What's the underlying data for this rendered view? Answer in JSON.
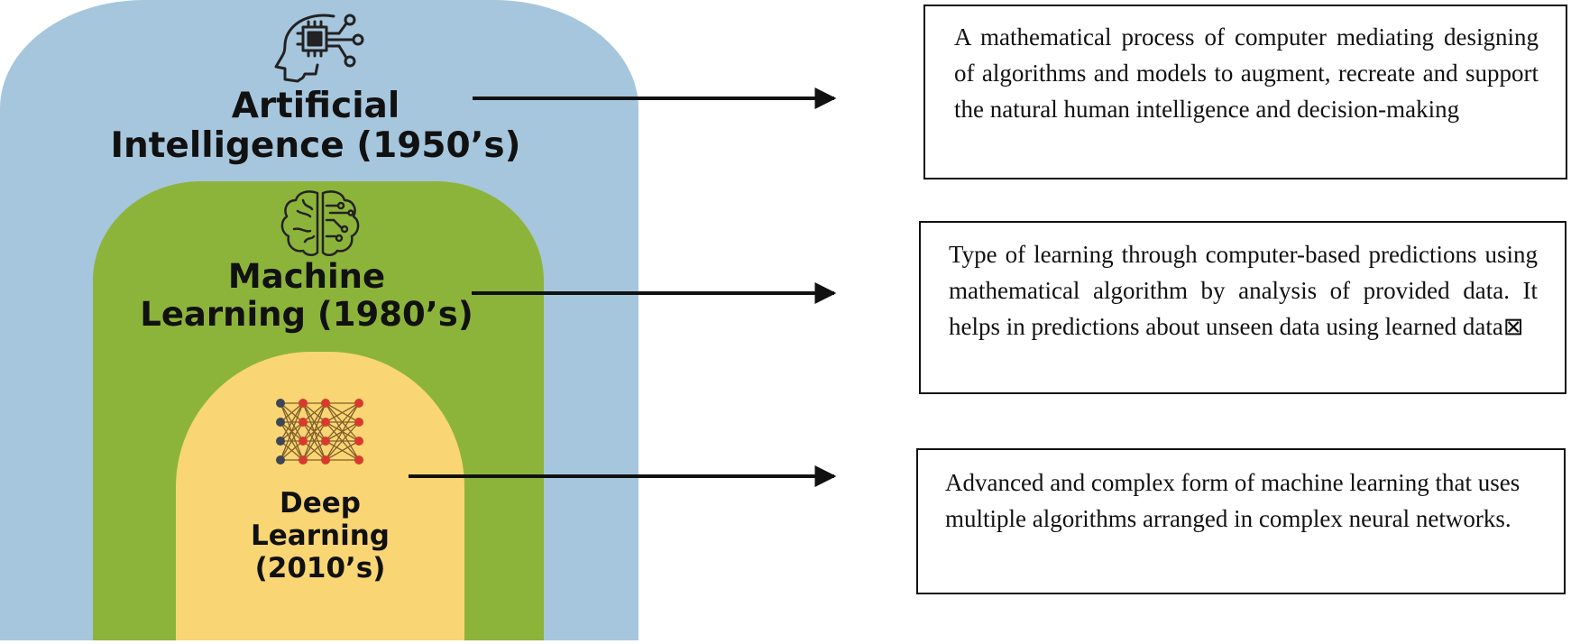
{
  "layers": [
    {
      "id": "ai",
      "title": "Artificial\nIntelligence (1950’s)",
      "icon": "ai-head-chip-icon",
      "color": "#a6c6dd"
    },
    {
      "id": "ml",
      "title": "Machine\nLearning (1980’s)",
      "icon": "brain-circuit-icon",
      "color": "#8db43a"
    },
    {
      "id": "dl",
      "title": "Deep\nLearning\n(2010’s)",
      "icon": "neural-network-icon",
      "color": "#f9d673"
    }
  ],
  "descriptions": {
    "ai": "A mathematical process of computer mediating designing of algorithms and models to augment, recreate and support the natural human intelligence and decision-making",
    "ml": "Type of learning through computer-based predictions using mathematical algorithm by analysis of provided data. It helps in predictions about unseen data using learned data⊠",
    "dl": "Advanced and complex form of machine learning that uses multiple algorithms arranged in complex neural networks."
  }
}
